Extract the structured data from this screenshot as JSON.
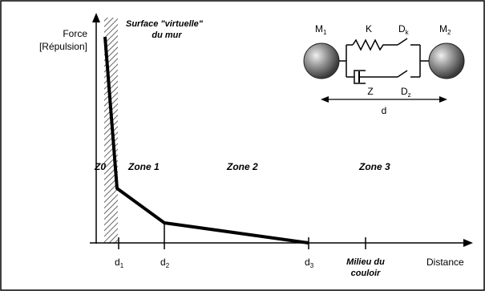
{
  "diagram": {
    "y_axis_label_line1": "Force",
    "y_axis_label_line2": "[Répulsion]",
    "x_axis_label": "Distance",
    "wall_label_line1": "Surface \"virtuelle\"",
    "wall_label_line2": "du mur",
    "zones": [
      "Z0",
      "Zone 1",
      "Zone 2",
      "Zone 3"
    ],
    "ticks": [
      {
        "base": "d",
        "sub": "1"
      },
      {
        "base": "d",
        "sub": "2"
      },
      {
        "base": "d",
        "sub": "3"
      }
    ],
    "milieu_line1": "Milieu du",
    "milieu_line2": "couloir",
    "mechanism": {
      "mass_left": {
        "base": "M",
        "sub": "1"
      },
      "mass_right": {
        "base": "M",
        "sub": "2"
      },
      "spring": "K",
      "damper": "Z",
      "switch_k": {
        "base": "D",
        "sub": "k"
      },
      "switch_z": {
        "base": "D",
        "sub": "z"
      },
      "distance": "d"
    }
  }
}
